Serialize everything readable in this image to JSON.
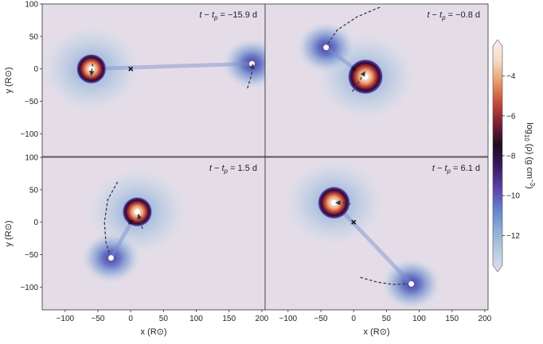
{
  "figure": {
    "colorbar": {
      "label_prefix": "log",
      "label_sub": "10",
      "label_rho": "(ρ) (g cm",
      "label_exp": "−3",
      "label_suffix": ")",
      "range": [
        -13.5,
        -2.5
      ],
      "ticks": [
        "−4",
        "−6",
        "−8",
        "−10",
        "−12"
      ],
      "tick_values": [
        -4,
        -6,
        -8,
        -10,
        -12
      ],
      "colors": [
        "#e3ddea",
        "#b7cbe0",
        "#8aaed6",
        "#6280c8",
        "#5d3fa6",
        "#3a1a5e",
        "#1e0a20",
        "#7a1e36",
        "#c24a3c",
        "#e89a6a",
        "#f4dcc8",
        "#f6eeea"
      ]
    }
  },
  "chart_data": [
    {
      "type": "heatmap",
      "panel": "top-left",
      "annotation": "t − t_p = −15.9 d",
      "ann_t": "t",
      "ann_tp": "t",
      "ann_p": "p",
      "ann_value": "= −15.9 d",
      "xlim": [
        -135,
        205
      ],
      "ylim": [
        -135,
        100
      ],
      "ylabel": "y (R⊙)",
      "yticks": [
        "100",
        "50",
        "0",
        "−50",
        "−100"
      ],
      "ytick_values": [
        100,
        50,
        0,
        -50,
        -100
      ],
      "stars": [
        {
          "x": -60,
          "y": 0,
          "size": "large",
          "radius": 22
        },
        {
          "x": 185,
          "y": 8,
          "size": "small",
          "radius": 3
        }
      ],
      "center_mark": {
        "x": 0,
        "y": 0
      },
      "trails": [
        {
          "points": [
            [
              -58,
              8
            ],
            [
              -60,
              -8
            ]
          ],
          "arrow": true
        },
        {
          "points": [
            [
              178,
              -30
            ],
            [
              184,
              -10
            ],
            [
              186,
              5
            ]
          ],
          "arrow": true
        }
      ]
    },
    {
      "type": "heatmap",
      "panel": "top-right",
      "annotation": "t − t_p = −0.8 d",
      "ann_t": "t",
      "ann_tp": "t",
      "ann_p": "p",
      "ann_value": "= −0.8 d",
      "xlim": [
        -135,
        205
      ],
      "ylim": [
        -135,
        100
      ],
      "stars": [
        {
          "x": 18,
          "y": -12,
          "size": "large",
          "radius": 26
        },
        {
          "x": -42,
          "y": 33,
          "size": "small",
          "radius": 3
        }
      ],
      "center_mark": {
        "x": 0,
        "y": 0
      },
      "trails": [
        {
          "points": [
            [
              40,
              95
            ],
            [
              5,
              80
            ],
            [
              -25,
              60
            ],
            [
              -40,
              38
            ]
          ],
          "arrow": false
        },
        {
          "points": [
            [
              -2,
              -35
            ],
            [
              8,
              -20
            ],
            [
              16,
              -6
            ]
          ],
          "arrow": true
        }
      ]
    },
    {
      "type": "heatmap",
      "panel": "bottom-left",
      "annotation": "t − t_p = 1.5 d",
      "ann_t": "t",
      "ann_tp": "t",
      "ann_p": "p",
      "ann_value": "= 1.5 d",
      "xlim": [
        -135,
        205
      ],
      "ylim": [
        -135,
        100
      ],
      "xlabel": "x (R⊙)",
      "ylabel": "y (R⊙)",
      "xticks": [
        "−100",
        "−50",
        "0",
        "50",
        "100",
        "150",
        "200"
      ],
      "xtick_values": [
        -100,
        -50,
        0,
        50,
        100,
        150,
        200
      ],
      "yticks": [
        "100",
        "50",
        "0",
        "−50",
        "−100"
      ],
      "ytick_values": [
        100,
        50,
        0,
        -50,
        -100
      ],
      "stars": [
        {
          "x": 10,
          "y": 16,
          "size": "large",
          "radius": 22
        },
        {
          "x": -30,
          "y": -55,
          "size": "small",
          "radius": 3
        }
      ],
      "center_mark": {
        "x": 0,
        "y": 0
      },
      "trails": [
        {
          "points": [
            [
              -20,
              62
            ],
            [
              -35,
              35
            ],
            [
              -40,
              0
            ],
            [
              -38,
              -30
            ],
            [
              -32,
              -50
            ]
          ],
          "arrow": false
        },
        {
          "points": [
            [
              18,
              -10
            ],
            [
              15,
              0
            ],
            [
              12,
              10
            ]
          ],
          "arrow": true
        }
      ]
    },
    {
      "type": "heatmap",
      "panel": "bottom-right",
      "annotation": "t − t_p = 6.1 d",
      "ann_t": "t",
      "ann_tp": "t",
      "ann_p": "p",
      "ann_value": "= 6.1 d",
      "xlim": [
        -135,
        205
      ],
      "ylim": [
        -135,
        100
      ],
      "xlabel": "x (R⊙)",
      "xticks": [
        "−100",
        "−50",
        "0",
        "50",
        "100",
        "150",
        "200"
      ],
      "xtick_values": [
        -100,
        -50,
        0,
        50,
        100,
        150,
        200
      ],
      "stars": [
        {
          "x": -30,
          "y": 30,
          "size": "large",
          "radius": 24
        },
        {
          "x": 88,
          "y": -95,
          "size": "small",
          "radius": 3
        }
      ],
      "center_mark": {
        "x": 0,
        "y": 0
      },
      "trails": [
        {
          "points": [
            [
              -5,
              28
            ],
            [
              -15,
              30
            ],
            [
              -25,
              30
            ]
          ],
          "arrow": true
        },
        {
          "points": [
            [
              10,
              -85
            ],
            [
              35,
              -92
            ],
            [
              60,
              -96
            ],
            [
              82,
              -95
            ]
          ],
          "arrow": false
        }
      ]
    }
  ]
}
